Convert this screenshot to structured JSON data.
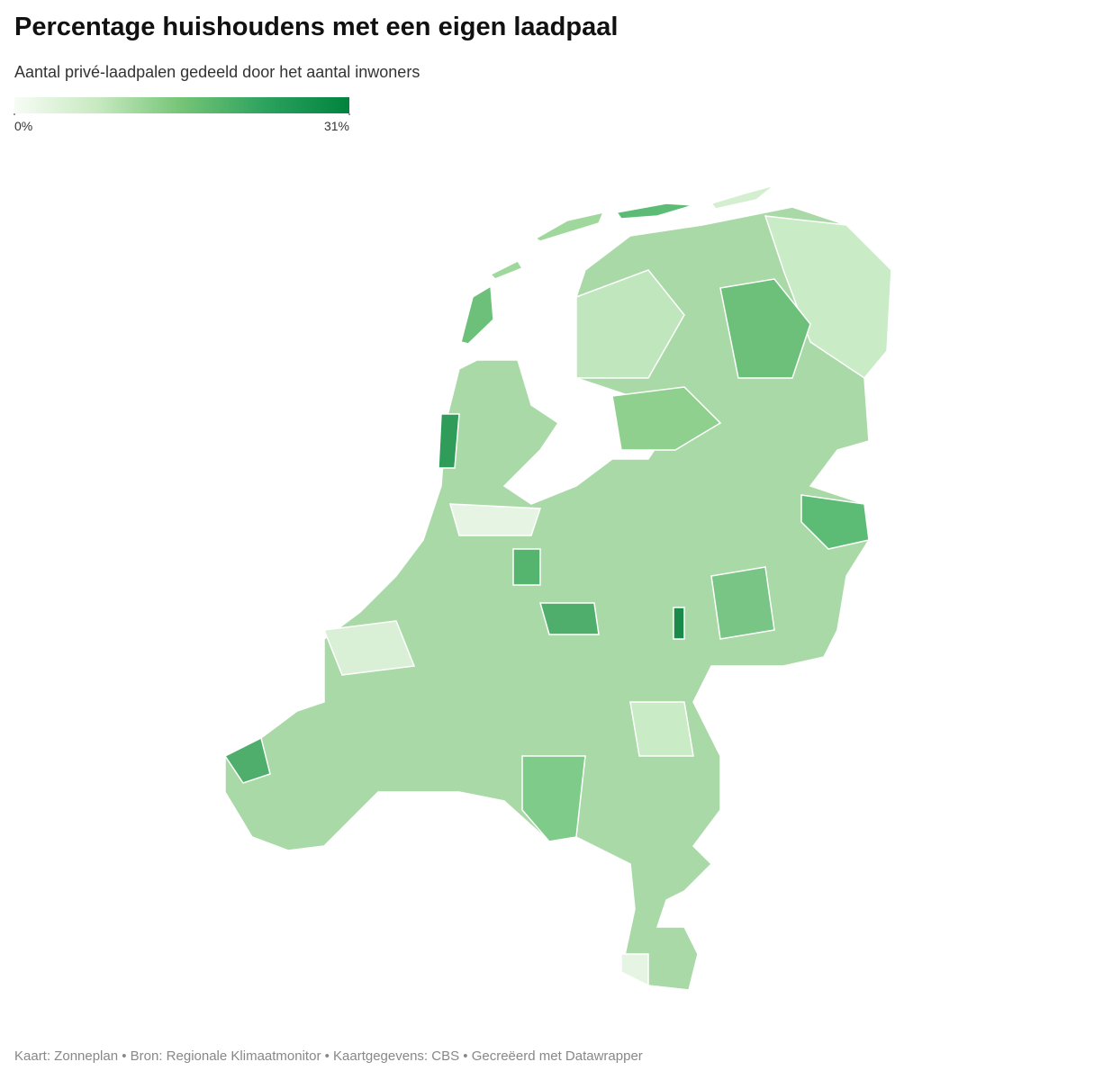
{
  "chart_data": {
    "type": "choropleth",
    "title": "Percentage huishoudens met een eigen laadpaal",
    "subtitle": "Aantal privé-laadpalen gedeeld door het aantal inwoners",
    "legend": {
      "lim": [
        0,
        31
      ],
      "ticks": [
        {
          "value": 0,
          "label": "0%"
        },
        {
          "value": 31,
          "label": "31%"
        }
      ],
      "colors": [
        "#f7fcf5",
        "#c7e9c0",
        "#74c476",
        "#2ca25f",
        "#00833e"
      ]
    },
    "source": "Kaart: Zonneplan • Bron: Regionale Klimaatmonitor • Kaartgegevens: CBS • Gecreëerd met Datawrapper"
  }
}
